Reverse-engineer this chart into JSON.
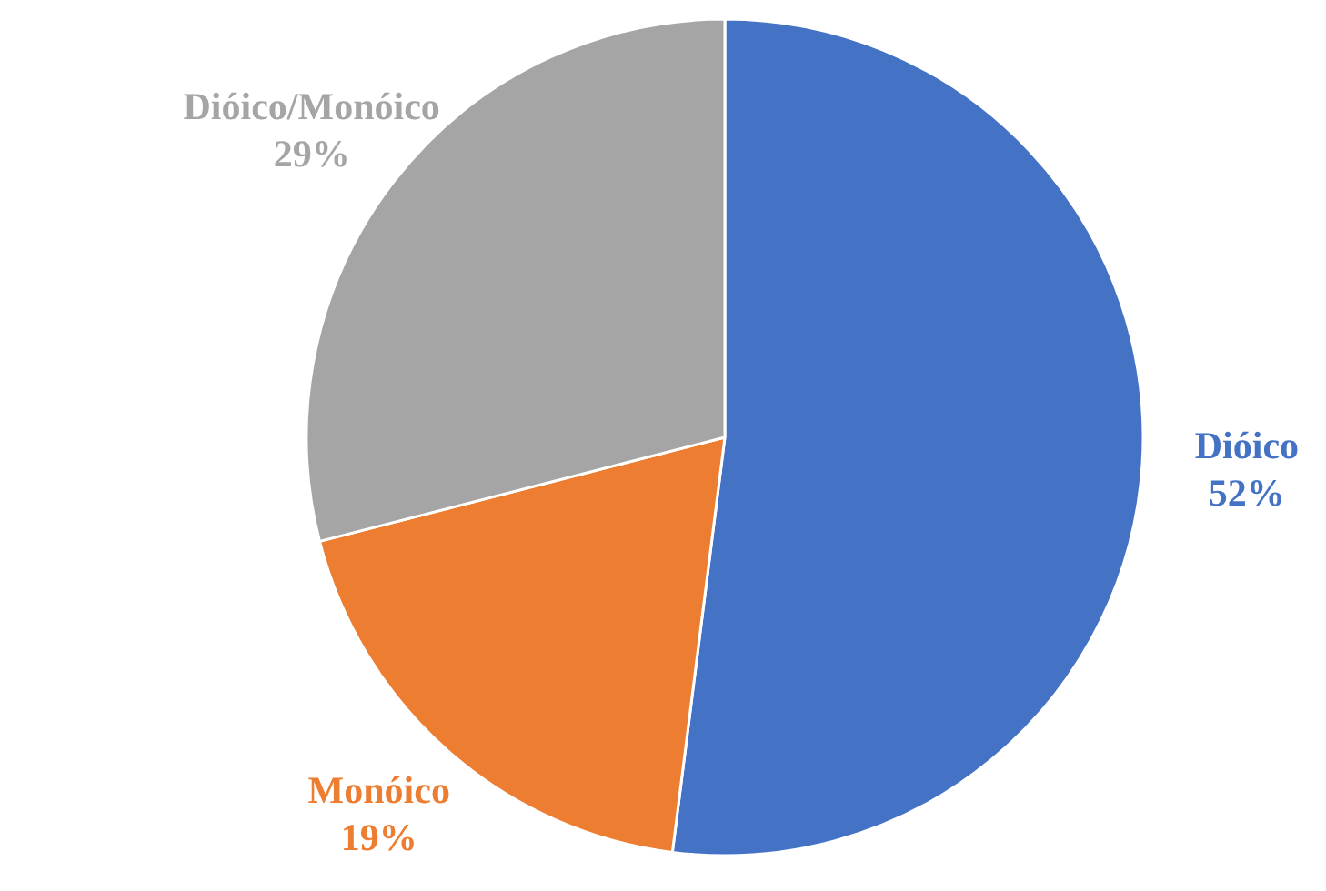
{
  "chart_data": {
    "type": "pie",
    "categories": [
      "Dióico",
      "Monóico",
      "Dióico/Monóico"
    ],
    "values": [
      52,
      19,
      29
    ],
    "colors": [
      "#4472c4",
      "#ed7d31",
      "#a5a5a5"
    ],
    "value_labels": [
      "52%",
      "19%",
      "29%"
    ]
  }
}
